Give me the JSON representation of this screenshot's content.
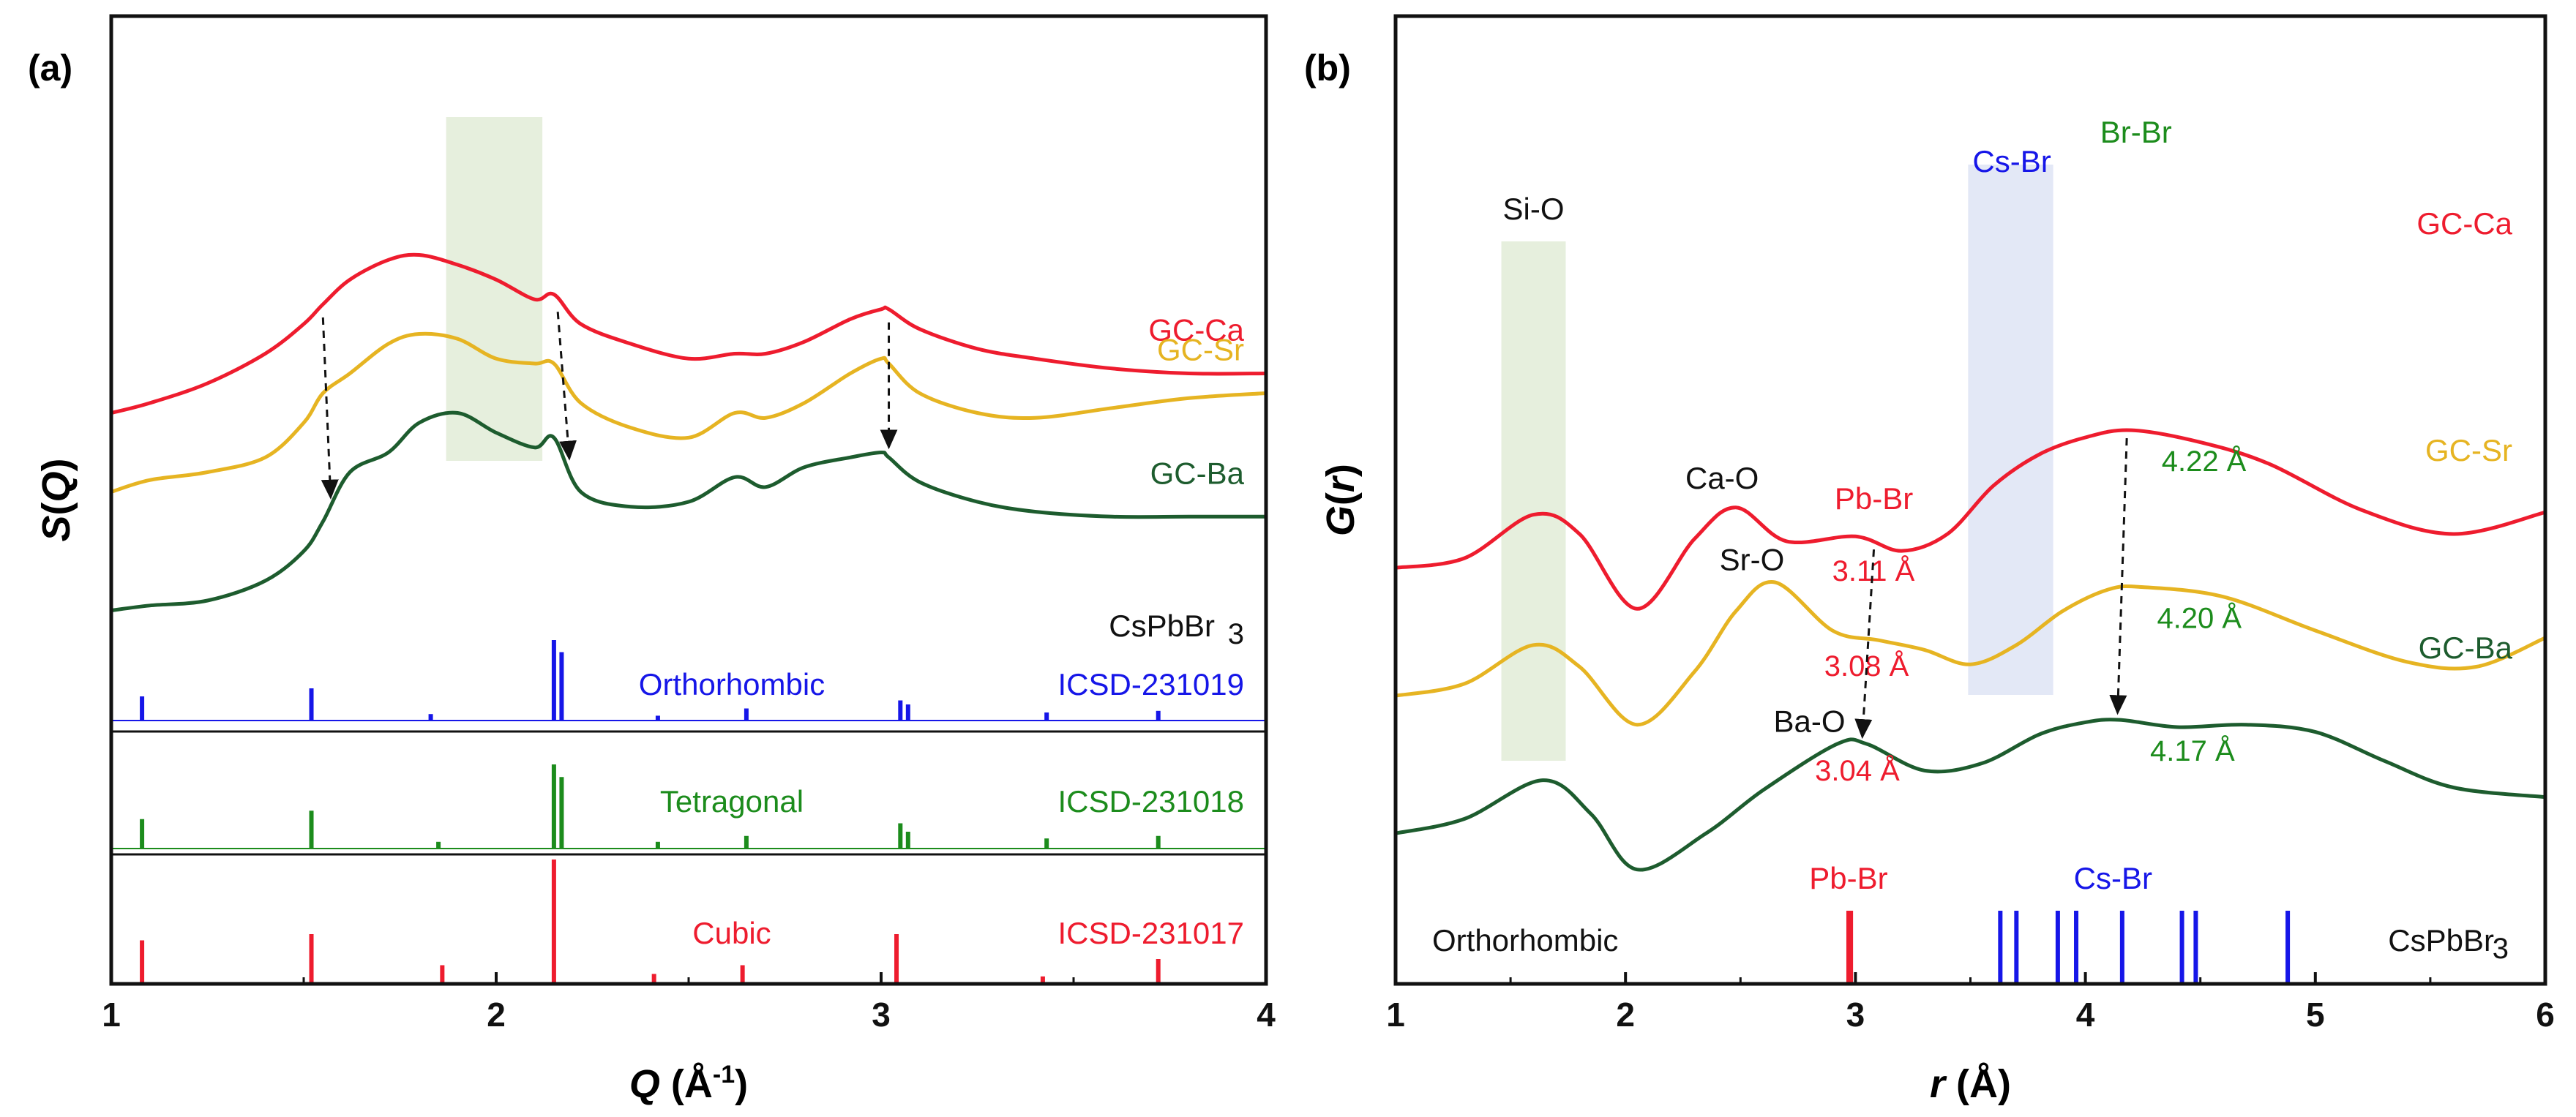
{
  "colors": {
    "red": "#ee1c2e",
    "yellow": "#e6b422",
    "green": "#1d5c2e",
    "blue": "#1616e8",
    "ref_green": "#1c8c1c",
    "black": "#111111",
    "shade_green": "#e6efdd",
    "shade_blue": "#e3e8f6"
  },
  "chart_data": [
    {
      "type": "line",
      "panel": "(a)",
      "xlabel_var": "Q",
      "xlabel_unit": " (Å",
      "xlabel_sup": "-1",
      "xlabel_close": ")",
      "ylabel_var": "S",
      "ylabel_open": "(",
      "ylabel_arg": "Q",
      "ylabel_close": ")",
      "xlim": [
        1,
        4
      ],
      "xticks": [
        "1",
        "2",
        "3",
        "4"
      ],
      "series": [
        {
          "name": "GC-Ca",
          "color": "red",
          "offset": 3.3,
          "x": [
            1.0,
            1.1,
            1.25,
            1.4,
            1.5,
            1.55,
            1.62,
            1.72,
            1.8,
            1.9,
            2.0,
            2.1,
            2.15,
            2.22,
            2.35,
            2.5,
            2.62,
            2.7,
            2.8,
            2.92,
            3.0,
            3.02,
            3.1,
            3.25,
            3.4,
            3.6,
            3.8,
            4.0
          ],
          "y": [
            0.0,
            0.1,
            0.3,
            0.6,
            0.9,
            1.1,
            1.35,
            1.55,
            1.6,
            1.5,
            1.35,
            1.15,
            1.2,
            0.9,
            0.7,
            0.55,
            0.6,
            0.6,
            0.72,
            0.95,
            1.05,
            1.05,
            0.85,
            0.65,
            0.55,
            0.45,
            0.4,
            0.4
          ]
        },
        {
          "name": "GC-Sr",
          "color": "yellow",
          "offset": 2.5,
          "x": [
            1.0,
            1.1,
            1.25,
            1.4,
            1.5,
            1.55,
            1.62,
            1.72,
            1.8,
            1.9,
            2.0,
            2.1,
            2.15,
            2.22,
            2.35,
            2.5,
            2.62,
            2.7,
            2.8,
            2.92,
            3.0,
            3.02,
            3.1,
            3.25,
            3.4,
            3.6,
            3.8,
            4.0
          ],
          "y": [
            0.0,
            0.12,
            0.2,
            0.35,
            0.7,
            1.0,
            1.2,
            1.5,
            1.6,
            1.55,
            1.35,
            1.3,
            1.3,
            0.9,
            0.65,
            0.55,
            0.8,
            0.75,
            0.9,
            1.2,
            1.35,
            1.3,
            1.0,
            0.8,
            0.75,
            0.85,
            0.95,
            1.0
          ]
        },
        {
          "name": "GC-Ba",
          "color": "green",
          "offset": 1.3,
          "x": [
            1.0,
            1.1,
            1.25,
            1.4,
            1.5,
            1.55,
            1.62,
            1.72,
            1.8,
            1.9,
            2.0,
            2.1,
            2.15,
            2.22,
            2.35,
            2.5,
            2.62,
            2.7,
            2.8,
            2.92,
            3.0,
            3.02,
            3.1,
            3.25,
            3.4,
            3.6,
            3.8,
            4.0
          ],
          "y": [
            0.0,
            0.05,
            0.1,
            0.3,
            0.6,
            0.9,
            1.4,
            1.6,
            1.9,
            2.0,
            1.8,
            1.65,
            1.75,
            1.2,
            1.05,
            1.1,
            1.35,
            1.25,
            1.45,
            1.55,
            1.6,
            1.55,
            1.3,
            1.1,
            1.0,
            0.95,
            0.95,
            0.95
          ]
        }
      ],
      "reference_patterns": [
        {
          "name": "Orthorhombic",
          "id": "ICSD-231019",
          "formula": "CsPbBr",
          "formula_sub": "3",
          "color": "blue",
          "peaks": [
            [
              1.08,
              0.3
            ],
            [
              1.52,
              0.4
            ],
            [
              1.83,
              0.08
            ],
            [
              2.15,
              1.0
            ],
            [
              2.17,
              0.85
            ],
            [
              2.42,
              0.06
            ],
            [
              2.65,
              0.15
            ],
            [
              3.05,
              0.25
            ],
            [
              3.07,
              0.2
            ],
            [
              3.43,
              0.1
            ],
            [
              3.72,
              0.12
            ]
          ]
        },
        {
          "name": "Tetragonal",
          "id": "ICSD-231018",
          "color": "ref_green",
          "peaks": [
            [
              1.08,
              0.35
            ],
            [
              1.52,
              0.45
            ],
            [
              1.85,
              0.08
            ],
            [
              2.15,
              1.0
            ],
            [
              2.17,
              0.85
            ],
            [
              2.42,
              0.08
            ],
            [
              2.65,
              0.15
            ],
            [
              3.05,
              0.3
            ],
            [
              3.07,
              0.2
            ],
            [
              3.43,
              0.12
            ],
            [
              3.72,
              0.15
            ]
          ]
        },
        {
          "name": "Cubic",
          "id": "ICSD-231017",
          "color": "red",
          "peaks": [
            [
              1.08,
              0.35
            ],
            [
              1.52,
              0.4
            ],
            [
              1.86,
              0.15
            ],
            [
              2.15,
              1.0
            ],
            [
              2.41,
              0.08
            ],
            [
              2.64,
              0.15
            ],
            [
              3.04,
              0.4
            ],
            [
              3.42,
              0.06
            ],
            [
              3.72,
              0.2
            ]
          ]
        }
      ],
      "shaded_band": [
        1.87,
        2.12
      ],
      "arrows": [
        {
          "x_top": 1.55,
          "x_bottom": 1.57
        },
        {
          "x_top": 2.16,
          "x_bottom": 2.19
        },
        {
          "x_top": 3.02,
          "x_bottom": 3.02
        }
      ]
    },
    {
      "type": "line",
      "panel": "(b)",
      "xlabel_var": "r",
      "xlabel_unit": " (Å)",
      "ylabel_var": "G",
      "ylabel_open": "(",
      "ylabel_arg": "r",
      "ylabel_close": ")",
      "xlim": [
        1,
        6
      ],
      "xticks": [
        "1",
        "2",
        "3",
        "4",
        "5",
        "6"
      ],
      "series": [
        {
          "name": "GC-Ca",
          "color": "red",
          "offset": 4.3,
          "x": [
            1.0,
            1.3,
            1.6,
            1.8,
            2.05,
            2.3,
            2.48,
            2.7,
            3.0,
            3.2,
            3.4,
            3.6,
            3.8,
            4.0,
            4.2,
            4.5,
            4.8,
            5.2,
            5.6,
            6.0
          ],
          "y": [
            0.0,
            0.2,
            1.1,
            0.7,
            -0.85,
            0.6,
            1.25,
            0.55,
            0.65,
            0.35,
            0.7,
            1.7,
            2.35,
            2.7,
            2.85,
            2.6,
            2.15,
            1.2,
            0.7,
            1.15
          ]
        },
        {
          "name": "GC-Sr",
          "color": "yellow",
          "offset": 1.65,
          "x": [
            1.0,
            1.3,
            1.6,
            1.8,
            2.05,
            2.3,
            2.48,
            2.65,
            2.9,
            3.1,
            3.3,
            3.5,
            3.7,
            3.9,
            4.1,
            4.25,
            4.6,
            5.0,
            5.4,
            5.7,
            6.0
          ],
          "y": [
            0.0,
            0.25,
            1.05,
            0.6,
            -0.6,
            0.5,
            1.75,
            2.35,
            1.35,
            1.15,
            0.95,
            0.65,
            1.05,
            1.75,
            2.2,
            2.25,
            2.05,
            1.35,
            0.7,
            0.6,
            1.2
          ]
        },
        {
          "name": "GC-Ba",
          "color": "green",
          "offset": -1.2,
          "x": [
            1.0,
            1.3,
            1.64,
            1.85,
            2.05,
            2.35,
            2.6,
            2.92,
            3.05,
            3.3,
            3.55,
            3.8,
            4.0,
            4.15,
            4.4,
            4.7,
            5.0,
            5.3,
            5.6,
            6.0
          ],
          "y": [
            0.0,
            0.3,
            1.1,
            0.4,
            -0.75,
            0.0,
            0.9,
            1.85,
            1.85,
            1.3,
            1.45,
            2.05,
            2.3,
            2.35,
            2.2,
            2.25,
            2.1,
            1.5,
            0.95,
            0.75
          ]
        }
      ],
      "reference_sticks": {
        "formula": "CsPbBr",
        "formula_sub": "3",
        "phase": "Orthorhombic",
        "pb_br": {
          "label": "Pb-Br",
          "color": "red",
          "positions": [
            2.97,
            2.98
          ]
        },
        "cs_br": {
          "label": "Cs-Br",
          "color": "blue",
          "positions": [
            3.63,
            3.7,
            3.88,
            3.96,
            4.16,
            4.42,
            4.48,
            4.88
          ]
        }
      },
      "shaded_bands": [
        {
          "range": [
            1.46,
            1.74
          ],
          "color": "shade_green"
        },
        {
          "range": [
            3.49,
            3.86
          ],
          "color": "shade_blue"
        }
      ],
      "annotations": [
        {
          "text": "Si-O",
          "color": "black",
          "x": 1.6,
          "series": null
        },
        {
          "text": "Ca-O",
          "color": "black",
          "x": 2.42,
          "series": "GC-Ca"
        },
        {
          "text": "Pb-Br",
          "color": "red",
          "x": 3.08,
          "series": "GC-Ca"
        },
        {
          "text": "Cs-Br",
          "color": "blue",
          "x": 3.68,
          "series": "GC-Ca"
        },
        {
          "text": "Br-Br",
          "color": "ref_green",
          "x": 4.22,
          "series": "GC-Ca"
        },
        {
          "text": "Sr-O",
          "color": "black",
          "x": 2.55,
          "series": "GC-Sr"
        },
        {
          "text": "Ba-O",
          "color": "black",
          "x": 2.8,
          "series": "GC-Ba"
        }
      ],
      "distances": [
        {
          "text": "3.11 Å",
          "color": "red",
          "x": 3.11,
          "series": "GC-Ca"
        },
        {
          "text": "4.22 Å",
          "color": "ref_green",
          "x": 4.22,
          "series": "GC-Ca"
        },
        {
          "text": "3.08 Å",
          "color": "red",
          "x": 3.08,
          "series": "GC-Sr"
        },
        {
          "text": "4.20 Å",
          "color": "ref_green",
          "x": 4.2,
          "series": "GC-Sr"
        },
        {
          "text": "3.04 Å",
          "color": "red",
          "x": 3.04,
          "series": "GC-Ba"
        },
        {
          "text": "4.17 Å",
          "color": "ref_green",
          "x": 4.17,
          "series": "GC-Ba"
        }
      ],
      "arrows": [
        {
          "x_top": 3.08,
          "x_bottom": 3.03
        },
        {
          "x_top": 4.18,
          "x_bottom": 4.14
        }
      ]
    }
  ]
}
